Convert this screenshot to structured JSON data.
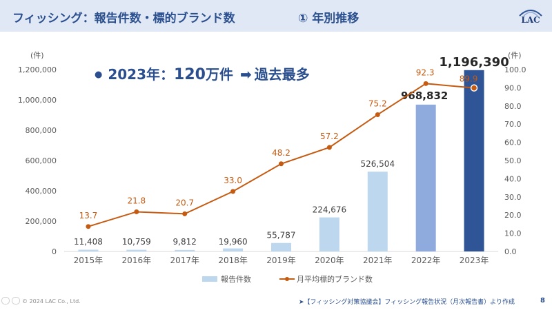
{
  "header": {
    "title": "フィッシング：報告件数・標的ブランド数",
    "subtitle": "① 年別推移",
    "logo_text": "LAC"
  },
  "highlight": {
    "bullet": "●",
    "year_label": "2023年：",
    "value_big": "120",
    "value_unit": "万件",
    "arrow": "➡",
    "note": "過去最多"
  },
  "chart_data": {
    "type": "bar",
    "categories": [
      "2015年",
      "2016年",
      "2017年",
      "2018年",
      "2019年",
      "2020年",
      "2021年",
      "2022年",
      "2023年"
    ],
    "series": [
      {
        "name": "報告件数",
        "type": "bar",
        "axis": "left",
        "values": [
          11408,
          10759,
          9812,
          19960,
          55787,
          224676,
          526504,
          968832,
          1196390
        ],
        "labels": [
          "11,408",
          "10,759",
          "9,812",
          "19,960",
          "55,787",
          "224,676",
          "526,504",
          "968,832",
          "1,196,390"
        ]
      },
      {
        "name": "月平均標的ブランド数",
        "type": "line",
        "axis": "right",
        "values": [
          13.7,
          21.8,
          20.7,
          33.0,
          48.2,
          57.2,
          75.2,
          92.3,
          89.9
        ],
        "labels": [
          "13.7",
          "21.8",
          "20.7",
          "33.0",
          "48.2",
          "57.2",
          "75.2",
          "92.3",
          "89.9"
        ]
      }
    ],
    "y_left": {
      "unit": "(件)",
      "range": [
        0,
        1200000
      ],
      "ticks": [
        "0",
        "200,000",
        "400,000",
        "600,000",
        "800,000",
        "1,000,000",
        "1,200,000"
      ]
    },
    "y_right": {
      "unit": "(件)",
      "range": [
        0,
        100
      ],
      "ticks": [
        "0.0",
        "10.0",
        "20.0",
        "30.0",
        "40.0",
        "50.0",
        "60.0",
        "70.0",
        "80.0",
        "90.0",
        "100.0"
      ]
    },
    "legend": {
      "position": "bottom"
    },
    "grid": false,
    "colors": {
      "bar_light": "#bdd7ee",
      "bar_2022": "#8faadc",
      "bar_2023": "#2f5597",
      "line": "#c55a11",
      "axis_text": "#595959"
    }
  },
  "footer": {
    "copyright": "© 2024 LAC Co., Ltd.",
    "source": "➤【フィッシング対策協議会】フィッシング報告状況（月次報告書）より作成",
    "page": "8"
  }
}
